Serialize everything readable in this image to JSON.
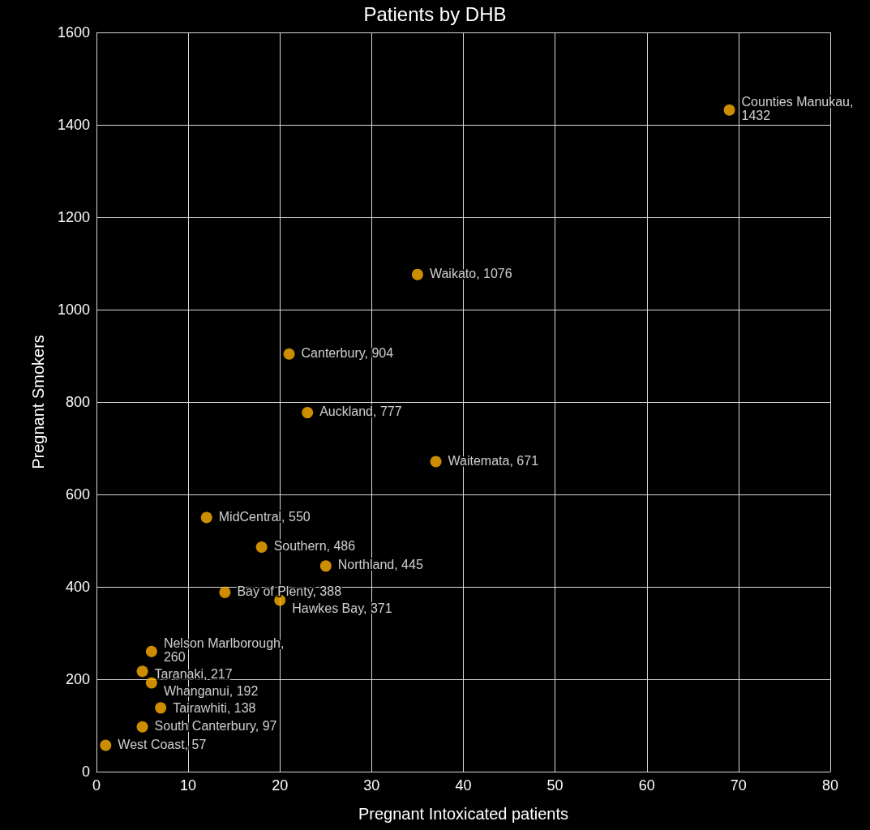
{
  "chart_data": {
    "type": "scatter",
    "title": "Patients by DHB",
    "xlabel": "Pregnant Intoxicated patients",
    "ylabel": "Pregnant Smokers",
    "x": [
      69,
      35,
      21,
      23,
      37,
      12,
      18,
      25,
      14,
      20,
      6,
      5,
      6,
      7,
      5,
      1
    ],
    "series": [
      {
        "color": "#ffb000",
        "values": [
          1432,
          1076,
          904,
          777,
          671,
          550,
          486,
          445,
          388,
          371,
          260,
          217,
          192,
          138,
          97,
          57
        ],
        "value_labels": [
          "Counties Manukau, 1432",
          "Waikato, 1076",
          "Canterbury, 904",
          "Auckland, 777",
          "Waitemata, 671",
          "MidCentral, 550",
          "Southern, 486",
          "Northland, 445",
          "Bay of Plenty, 388",
          "Hawkes Bay, 371",
          "Nelson Marlborough, 260",
          "Taranaki, 217",
          "Whanganui, 192",
          "Tairawhiti, 138",
          "South Canterbury, 97",
          "West Coast, 57"
        ]
      }
    ],
    "xlim": [
      0,
      80
    ],
    "xticks": [
      0,
      10,
      20,
      30,
      40,
      50,
      60,
      70,
      80
    ],
    "ylim": [
      0,
      1600
    ],
    "yticks": [
      0,
      200,
      400,
      600,
      800,
      1000,
      1200,
      1400,
      1600
    ],
    "grid": true,
    "marker": "circle"
  }
}
